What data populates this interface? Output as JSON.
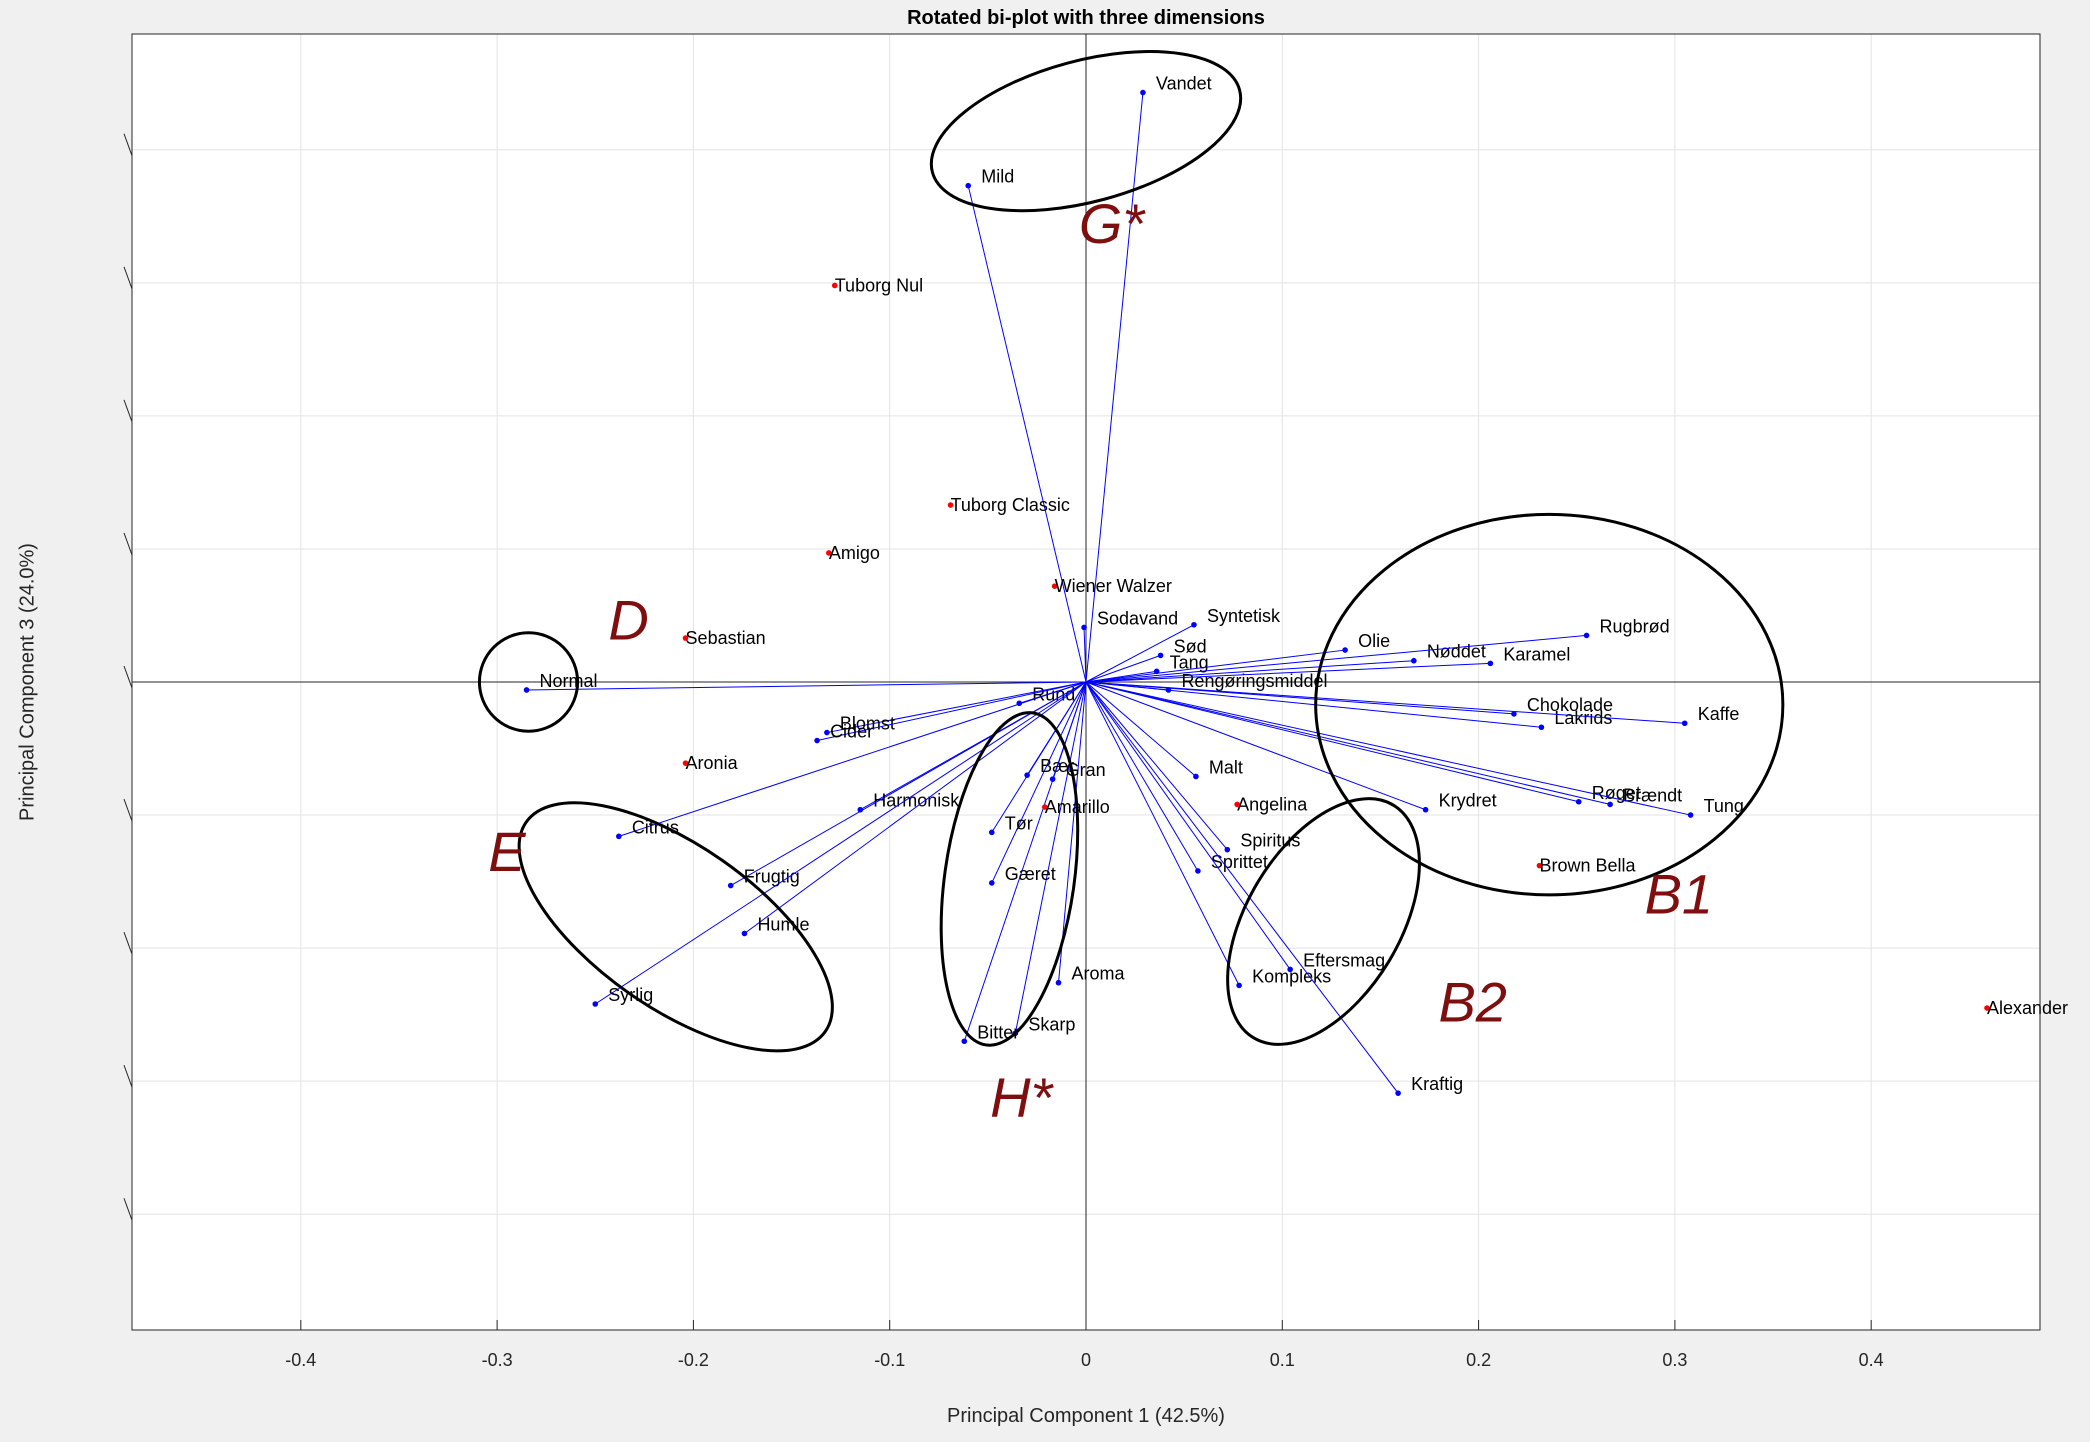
{
  "chart_data": {
    "type": "scatter",
    "title": "Rotated bi-plot with three dimensions",
    "xlabel": "Principal Component 1 (42.5%)",
    "ylabel": "Principal Component 3 (24.0%)",
    "xlim": [
      -0.486,
      0.486
    ],
    "ylim": [
      -0.487,
      0.487
    ],
    "xticks": [
      -0.4,
      -0.3,
      -0.2,
      -0.1,
      0,
      0.1,
      0.2,
      0.3,
      0.4
    ],
    "xtick_labels": [
      "-0.4",
      "-0.3",
      "-0.2",
      "-0.1",
      "0",
      "0.1",
      "0.2",
      "0.3",
      "0.4"
    ],
    "yticks": [
      -0.4,
      -0.3,
      -0.2,
      -0.1,
      0,
      0.1,
      0.2,
      0.3,
      0.4
    ],
    "grid": true,
    "colors": {
      "vector": "#0000ff",
      "observation": "#ff0000",
      "region": "#7f0f0f",
      "ellipse": "#000000"
    },
    "vectors": [
      {
        "name": "Vandet",
        "x": 0.029,
        "y": 0.443
      },
      {
        "name": "Mild",
        "x": -0.06,
        "y": 0.373
      },
      {
        "name": "Sodavand",
        "x": -0.001,
        "y": 0.041
      },
      {
        "name": "Syntetisk",
        "x": 0.055,
        "y": 0.043
      },
      {
        "name": "Sød",
        "x": 0.038,
        "y": 0.02
      },
      {
        "name": "Tang",
        "x": 0.036,
        "y": 0.008
      },
      {
        "name": "Rengøringsmiddel",
        "x": 0.042,
        "y": -0.006
      },
      {
        "name": "Olie",
        "x": 0.132,
        "y": 0.024
      },
      {
        "name": "Nøddet",
        "x": 0.167,
        "y": 0.016
      },
      {
        "name": "Karamel",
        "x": 0.206,
        "y": 0.014
      },
      {
        "name": "Rugbrød",
        "x": 0.255,
        "y": 0.035
      },
      {
        "name": "Chokolade",
        "x": 0.218,
        "y": -0.024
      },
      {
        "name": "Lakrids",
        "x": 0.232,
        "y": -0.034
      },
      {
        "name": "Kaffe",
        "x": 0.305,
        "y": -0.031
      },
      {
        "name": "Røget",
        "x": 0.251,
        "y": -0.09
      },
      {
        "name": "Brændt",
        "x": 0.267,
        "y": -0.092
      },
      {
        "name": "Tung",
        "x": 0.308,
        "y": -0.1
      },
      {
        "name": "Krydret",
        "x": 0.173,
        "y": -0.096
      },
      {
        "name": "Malt",
        "x": 0.056,
        "y": -0.071
      },
      {
        "name": "Spiritus",
        "x": 0.072,
        "y": -0.126
      },
      {
        "name": "Sprittet",
        "x": 0.057,
        "y": -0.142
      },
      {
        "name": "Eftersmag",
        "x": 0.104,
        "y": -0.216
      },
      {
        "name": "Kompleks",
        "x": 0.078,
        "y": -0.228
      },
      {
        "name": "Kraftig",
        "x": 0.159,
        "y": -0.309
      },
      {
        "name": "Aroma",
        "x": -0.014,
        "y": -0.226
      },
      {
        "name": "Skarp",
        "x": -0.036,
        "y": -0.264
      },
      {
        "name": "Bitter",
        "x": -0.062,
        "y": -0.27
      },
      {
        "name": "Gæret",
        "x": -0.048,
        "y": -0.151
      },
      {
        "name": "Tør",
        "x": -0.048,
        "y": -0.113
      },
      {
        "name": "Bær",
        "x": -0.03,
        "y": -0.07
      },
      {
        "name": "Gran",
        "x": -0.017,
        "y": -0.073
      },
      {
        "name": "Rund",
        "x": -0.034,
        "y": -0.016
      },
      {
        "name": "Harmonisk",
        "x": -0.115,
        "y": -0.096
      },
      {
        "name": "Blomst",
        "x": -0.132,
        "y": -0.038
      },
      {
        "name": "Cider",
        "x": -0.137,
        "y": -0.044
      },
      {
        "name": "Citrus",
        "x": -0.238,
        "y": -0.116
      },
      {
        "name": "Frugtig",
        "x": -0.181,
        "y": -0.153
      },
      {
        "name": "Humle",
        "x": -0.174,
        "y": -0.189
      },
      {
        "name": "Syrlig",
        "x": -0.25,
        "y": -0.242
      },
      {
        "name": "Normal",
        "x": -0.285,
        "y": -0.006
      }
    ],
    "observations": [
      {
        "name": "Tuborg Nul",
        "x": -0.128,
        "y": 0.298
      },
      {
        "name": "Tuborg Classic",
        "x": -0.069,
        "y": 0.133
      },
      {
        "name": "Amigo",
        "x": -0.131,
        "y": 0.097
      },
      {
        "name": "Wiener Walzer",
        "x": -0.016,
        "y": 0.072
      },
      {
        "name": "Sebastian",
        "x": -0.204,
        "y": 0.033
      },
      {
        "name": "Aronia",
        "x": -0.204,
        "y": -0.061
      },
      {
        "name": "Amarillo",
        "x": -0.021,
        "y": -0.094
      },
      {
        "name": "Angelina",
        "x": 0.077,
        "y": -0.092
      },
      {
        "name": "Brown Bella",
        "x": 0.231,
        "y": -0.138
      },
      {
        "name": "Alexander",
        "x": 0.459,
        "y": -0.245
      }
    ],
    "ellipses": [
      {
        "id": "G*",
        "cx": 0.0,
        "cy": 0.414,
        "rx": 0.081,
        "ry": 0.053,
        "angle": -15
      },
      {
        "id": "D",
        "cx": -0.284,
        "cy": 0.0,
        "rx": 0.025,
        "ry": 0.037,
        "angle": 0
      },
      {
        "id": "E",
        "cx": -0.209,
        "cy": -0.184,
        "rx": 0.093,
        "ry": 0.061,
        "angle": 35
      },
      {
        "id": "H*",
        "cx": -0.039,
        "cy": -0.148,
        "rx": 0.033,
        "ry": 0.126,
        "angle": 8
      },
      {
        "id": "B1",
        "cx": 0.236,
        "cy": -0.017,
        "rx": 0.119,
        "ry": 0.143,
        "angle": 0
      },
      {
        "id": "B2",
        "cx": 0.121,
        "cy": -0.18,
        "rx": 0.039,
        "ry": 0.102,
        "angle": 31
      }
    ],
    "annotations": [
      {
        "text": "G*",
        "x": 0.013,
        "y": 0.33
      },
      {
        "text": "D",
        "x": -0.233,
        "y": 0.032
      },
      {
        "text": "E",
        "x": -0.295,
        "y": -0.142
      },
      {
        "text": "H*",
        "x": -0.033,
        "y": -0.327
      },
      {
        "text": "B1",
        "x": 0.302,
        "y": -0.174
      },
      {
        "text": "B2",
        "x": 0.197,
        "y": -0.255
      }
    ]
  }
}
